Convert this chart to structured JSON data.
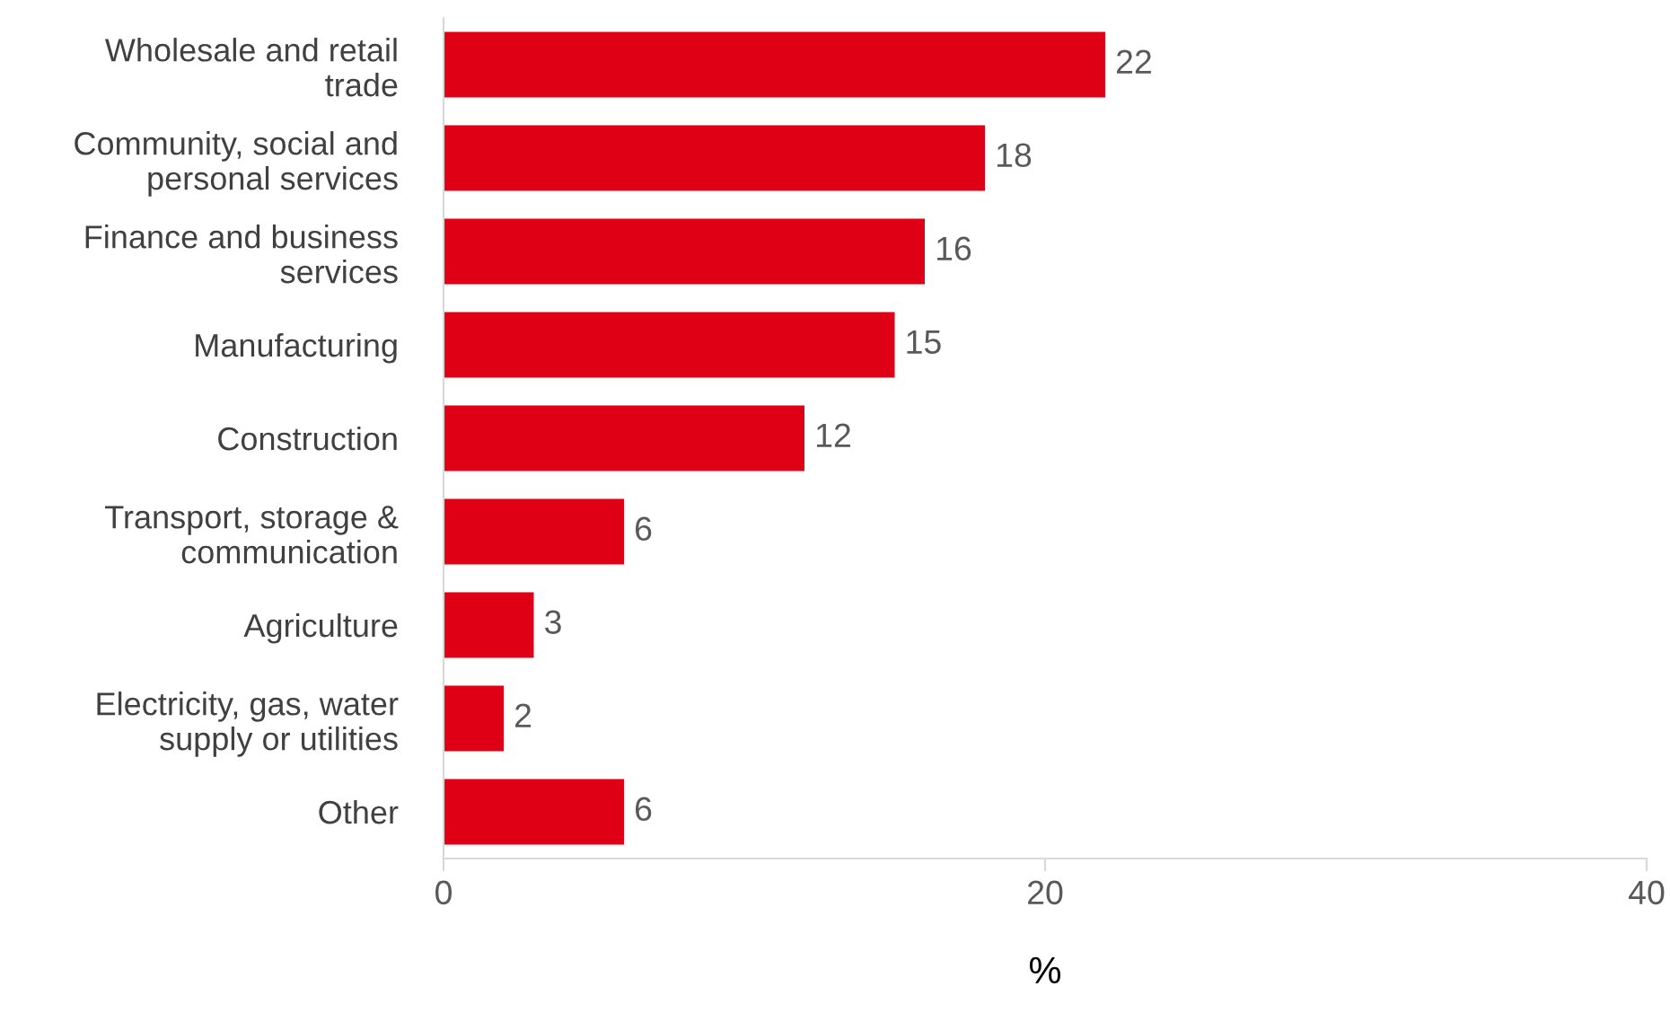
{
  "chart_data": {
    "type": "bar",
    "orientation": "horizontal",
    "categories": [
      "Wholesale and retail\ntrade",
      "Community, social and\npersonal services",
      "Finance and business\nservices",
      "Manufacturing",
      "Construction",
      "Transport, storage &\ncommunication",
      "Agriculture",
      "Electricity, gas, water\nsupply or utilities",
      "Other"
    ],
    "values": [
      22,
      18,
      16,
      15,
      12,
      6,
      3,
      2,
      6
    ],
    "color": "#e00015",
    "xlabel": "%",
    "xlim": [
      0,
      40
    ],
    "xticks": [
      0,
      20,
      40
    ],
    "data_labels": true
  }
}
